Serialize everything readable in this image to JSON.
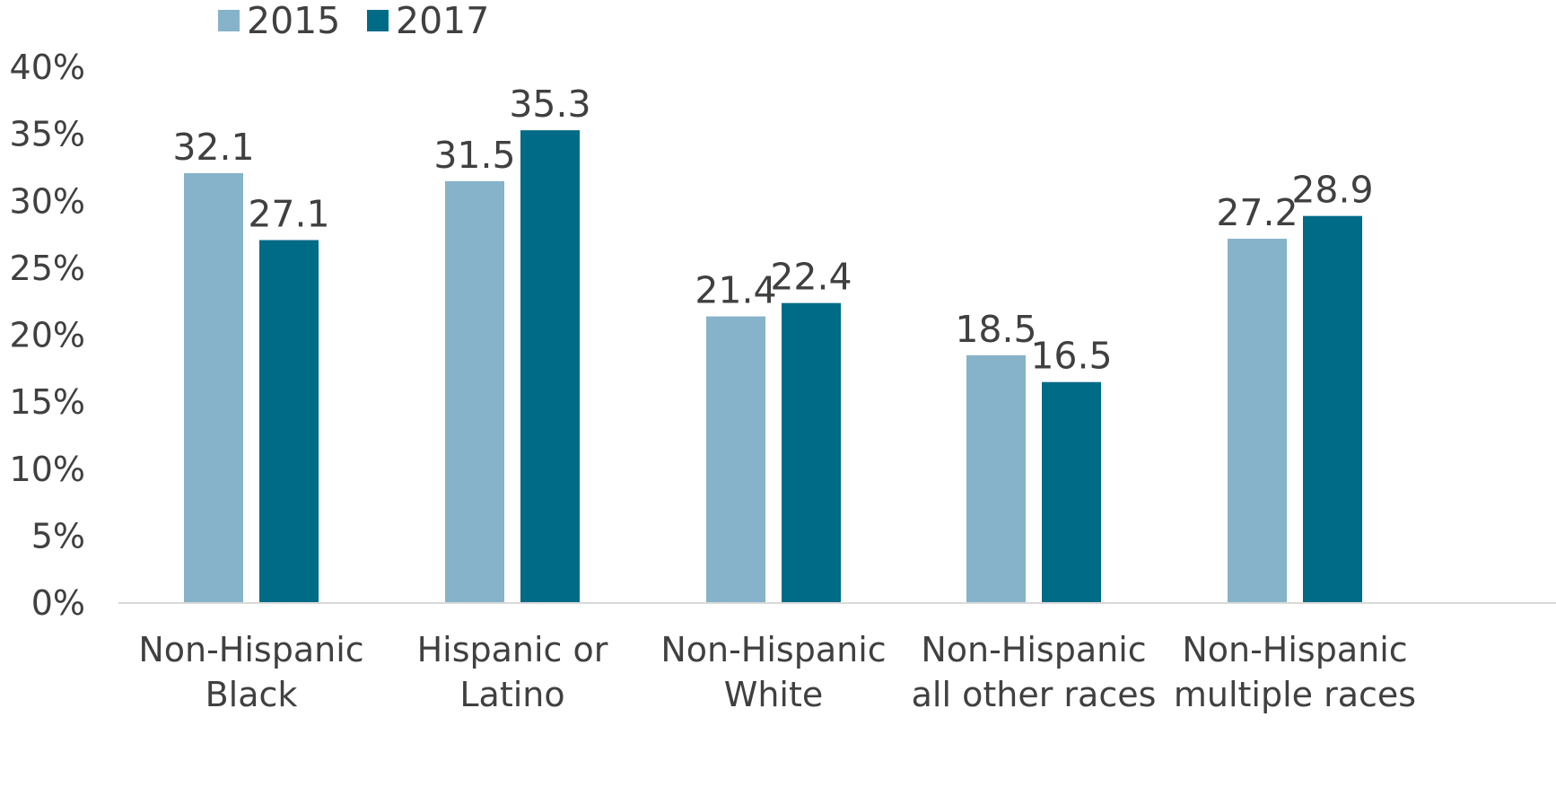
{
  "chart_data": {
    "type": "bar",
    "categories": [
      [
        "Non-Hispanic",
        "Black"
      ],
      [
        "Hispanic or",
        "Latino"
      ],
      [
        "Non-Hispanic",
        "White"
      ],
      [
        "Non-Hispanic",
        "all other races"
      ],
      [
        "Non-Hispanic",
        "multiple races"
      ]
    ],
    "series": [
      {
        "name": "2015",
        "values": [
          32.1,
          31.5,
          21.4,
          18.5,
          27.2
        ],
        "color": "#86b3c9"
      },
      {
        "name": "2017",
        "values": [
          27.1,
          35.3,
          22.4,
          16.5,
          28.9
        ],
        "color": "#006b87"
      }
    ],
    "value_labels": [
      [
        "32.1",
        "31.5",
        "21.4",
        "18.5",
        "27.2"
      ],
      [
        "27.1",
        "35.3",
        "22.4",
        "16.5",
        "28.9"
      ]
    ],
    "yticks": [
      "0%",
      "5%",
      "10%",
      "15%",
      "20%",
      "25%",
      "30%",
      "35%",
      "40%"
    ],
    "ylim": [
      0,
      40
    ],
    "title": "",
    "xlabel": "",
    "ylabel": "",
    "legend_position": "top-left",
    "grid": false,
    "axis_color": "#d9d9d9",
    "text_color": "#404040"
  }
}
